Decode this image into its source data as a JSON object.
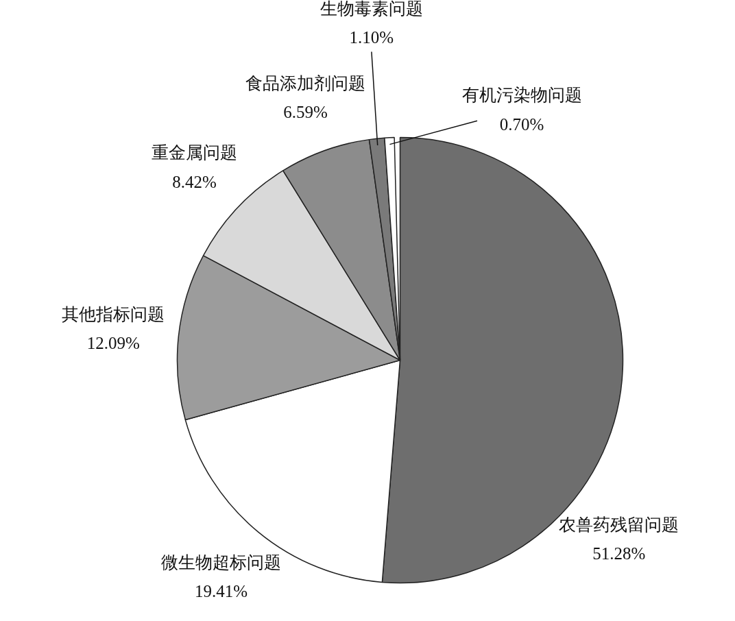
{
  "chart_data": {
    "type": "pie",
    "categories": [
      "农兽药残留问题",
      "微生物超标问题",
      "其他指标问题",
      "重金属问题",
      "食品添加剂问题",
      "生物毒素问题",
      "有机污染物问题"
    ],
    "values": [
      51.28,
      19.41,
      12.09,
      8.42,
      6.59,
      1.1,
      0.7
    ],
    "value_labels": [
      "51.28%",
      "19.41%",
      "12.09%",
      "8.42%",
      "6.59%",
      "1.10%",
      "0.70%"
    ],
    "colors": [
      "#6e6e6e",
      "#ffffff",
      "#9c9c9c",
      "#d9d9d9",
      "#8c8c8c",
      "#7a7a7a",
      "#ffffff"
    ]
  }
}
